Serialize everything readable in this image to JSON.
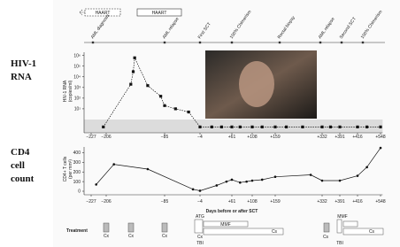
{
  "row_labels": [
    [
      "HIV-1",
      "RNA"
    ],
    [
      "CD4",
      "cell",
      "count"
    ]
  ],
  "events": [
    "AML diagnosis",
    "AML relapse",
    "First SCT",
    "100% Chimerism",
    "Rectal biopsy",
    "AML relapse",
    "Second SCT",
    "100% Chimerism"
  ],
  "haart": [
    "HAART",
    "HAART"
  ],
  "treatment_label": "Treatment",
  "treatments": [
    "Cx",
    "Cx",
    "Cx",
    "ATG",
    "Cx",
    "TBI",
    "MMF",
    "Cs",
    "MMF",
    "Cs",
    "TBI",
    "Cs"
  ],
  "chart_data": [
    {
      "type": "line",
      "y_label": [
        "HIV-1 RNA",
        "(copies/ml)"
      ],
      "log_scale": true,
      "dashed": true,
      "marker": "square",
      "color": "#111111",
      "xlim": [
        -240,
        560
      ],
      "xticks": [
        {
          "value": -227,
          "label": "−227"
        },
        {
          "value": -206,
          "label": "−206"
        },
        {
          "value": -85,
          "label": "−85"
        },
        {
          "value": -4,
          "label": "−4"
        },
        {
          "value": 61,
          "label": "+61"
        },
        {
          "value": 108,
          "label": "+108"
        },
        {
          "value": 159,
          "label": "+159"
        },
        {
          "value": 332,
          "label": "+332"
        },
        {
          "value": 391,
          "label": "+391"
        },
        {
          "value": 416,
          "label": "+416"
        },
        {
          "value": 548,
          "label": "+548"
        }
      ],
      "ylim": [
        0.1,
        2000000
      ],
      "yticks": [
        {
          "value": 10,
          "label": "10¹"
        },
        {
          "value": 100,
          "label": "10²"
        },
        {
          "value": 1000,
          "label": "10³"
        },
        {
          "value": 10000,
          "label": "10⁴"
        },
        {
          "value": 100000,
          "label": "10⁵"
        },
        {
          "value": 1000000,
          "label": "10⁶"
        }
      ],
      "x": [
        -210,
        -155,
        -150,
        -147,
        -120,
        -93,
        -85,
        -60,
        -30,
        -4,
        20,
        40,
        61,
        80,
        108,
        130,
        159,
        200,
        260,
        332,
        360,
        391,
        416,
        470,
        548
      ],
      "values": [
        0.2,
        2000,
        30000,
        600000,
        1500,
        150,
        20,
        10,
        5,
        0.2,
        0.2,
        0.2,
        0.2,
        0.2,
        0.2,
        0.2,
        0.2,
        0.2,
        0.2,
        0.2,
        0.2,
        0.2,
        0.2,
        0.2,
        0.2
      ]
    },
    {
      "type": "line",
      "y_label": [
        "CD4+ T cells",
        "(per mm³)"
      ],
      "x_label": "Days before or after SCT",
      "log_scale": false,
      "dashed": false,
      "marker": "circle",
      "color": "#111111",
      "xlim": [
        -240,
        560
      ],
      "xticks": [
        {
          "value": -227,
          "label": "−227"
        },
        {
          "value": -206,
          "label": "−206"
        },
        {
          "value": -85,
          "label": "−85"
        },
        {
          "value": -4,
          "label": "−4"
        },
        {
          "value": 61,
          "label": "+61"
        },
        {
          "value": 108,
          "label": "+108"
        },
        {
          "value": 159,
          "label": "+159"
        },
        {
          "value": 332,
          "label": "+332"
        },
        {
          "value": 391,
          "label": "+391"
        },
        {
          "value": 416,
          "label": "+416"
        },
        {
          "value": 548,
          "label": "+548"
        }
      ],
      "ylim": [
        0,
        460
      ],
      "yticks": [
        0,
        100,
        200,
        300,
        400
      ],
      "x": [
        -220,
        -190,
        -120,
        -20,
        -4,
        30,
        50,
        61,
        80,
        95,
        108,
        130,
        159,
        290,
        332,
        391,
        416,
        470,
        548
      ],
      "values": [
        70,
        280,
        230,
        20,
        5,
        60,
        100,
        120,
        90,
        100,
        110,
        120,
        150,
        170,
        110,
        110,
        160,
        250,
        450
      ]
    }
  ]
}
